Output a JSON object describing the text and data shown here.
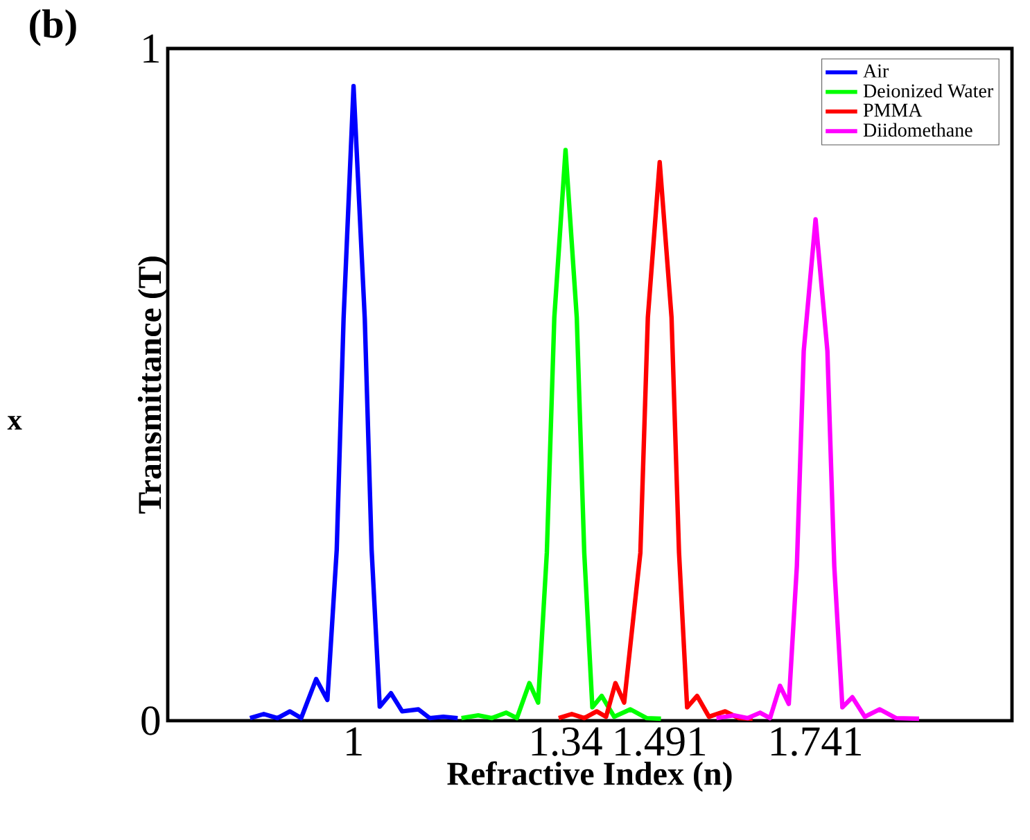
{
  "chart_data": {
    "type": "line",
    "xlabel": "Refractive Index (n)",
    "ylabel": "Transmittance (T)",
    "annotations": [
      "(b)",
      "x"
    ],
    "xlim": [
      0.702,
      2.056
    ],
    "ylim": [
      0,
      1
    ],
    "xticks": [
      1,
      1.34,
      1.491,
      1.741
    ],
    "yticks": [
      0,
      1
    ],
    "legend": "top right",
    "series": [
      {
        "name": "Air",
        "color": "#0000ff",
        "x": [
          0.834,
          0.856,
          0.878,
          0.898,
          0.916,
          0.94,
          0.958,
          0.973,
          0.984,
          1.0,
          1.018,
          1.029,
          1.042,
          1.06,
          1.078,
          1.104,
          1.122,
          1.144,
          1.167
        ],
        "values": [
          0.004,
          0.01,
          0.004,
          0.014,
          0.004,
          0.062,
          0.031,
          0.254,
          0.598,
          0.944,
          0.598,
          0.254,
          0.021,
          0.041,
          0.014,
          0.017,
          0.004,
          0.006,
          0.004
        ]
      },
      {
        "name": "Deionized Water",
        "color": "#00ff00",
        "x": [
          1.173,
          1.2,
          1.222,
          1.245,
          1.262,
          1.282,
          1.296,
          1.31,
          1.322,
          1.34,
          1.358,
          1.37,
          1.383,
          1.398,
          1.418,
          1.444,
          1.47,
          1.493
        ],
        "values": [
          0.004,
          0.008,
          0.004,
          0.012,
          0.004,
          0.056,
          0.027,
          0.25,
          0.6,
          0.849,
          0.6,
          0.25,
          0.02,
          0.037,
          0.006,
          0.017,
          0.004,
          0.003
        ]
      },
      {
        "name": "PMMA",
        "color": "#ff0000",
        "x": [
          1.329,
          1.35,
          1.37,
          1.39,
          1.405,
          1.42,
          1.434,
          1.46,
          1.472,
          1.491,
          1.51,
          1.522,
          1.535,
          1.551,
          1.57,
          1.596,
          1.618,
          1.64
        ],
        "values": [
          0.004,
          0.01,
          0.004,
          0.014,
          0.006,
          0.056,
          0.027,
          0.25,
          0.6,
          0.831,
          0.6,
          0.25,
          0.02,
          0.037,
          0.006,
          0.014,
          0.004,
          0.003
        ]
      },
      {
        "name": "Diidomethane",
        "color": "#ff00ff",
        "x": [
          1.582,
          1.61,
          1.632,
          1.652,
          1.668,
          1.684,
          1.698,
          1.711,
          1.722,
          1.741,
          1.76,
          1.771,
          1.784,
          1.8,
          1.82,
          1.844,
          1.87,
          1.907
        ],
        "values": [
          0.004,
          0.008,
          0.004,
          0.012,
          0.004,
          0.052,
          0.025,
          0.23,
          0.55,
          0.746,
          0.55,
          0.23,
          0.02,
          0.035,
          0.006,
          0.017,
          0.004,
          0.003
        ]
      }
    ]
  }
}
